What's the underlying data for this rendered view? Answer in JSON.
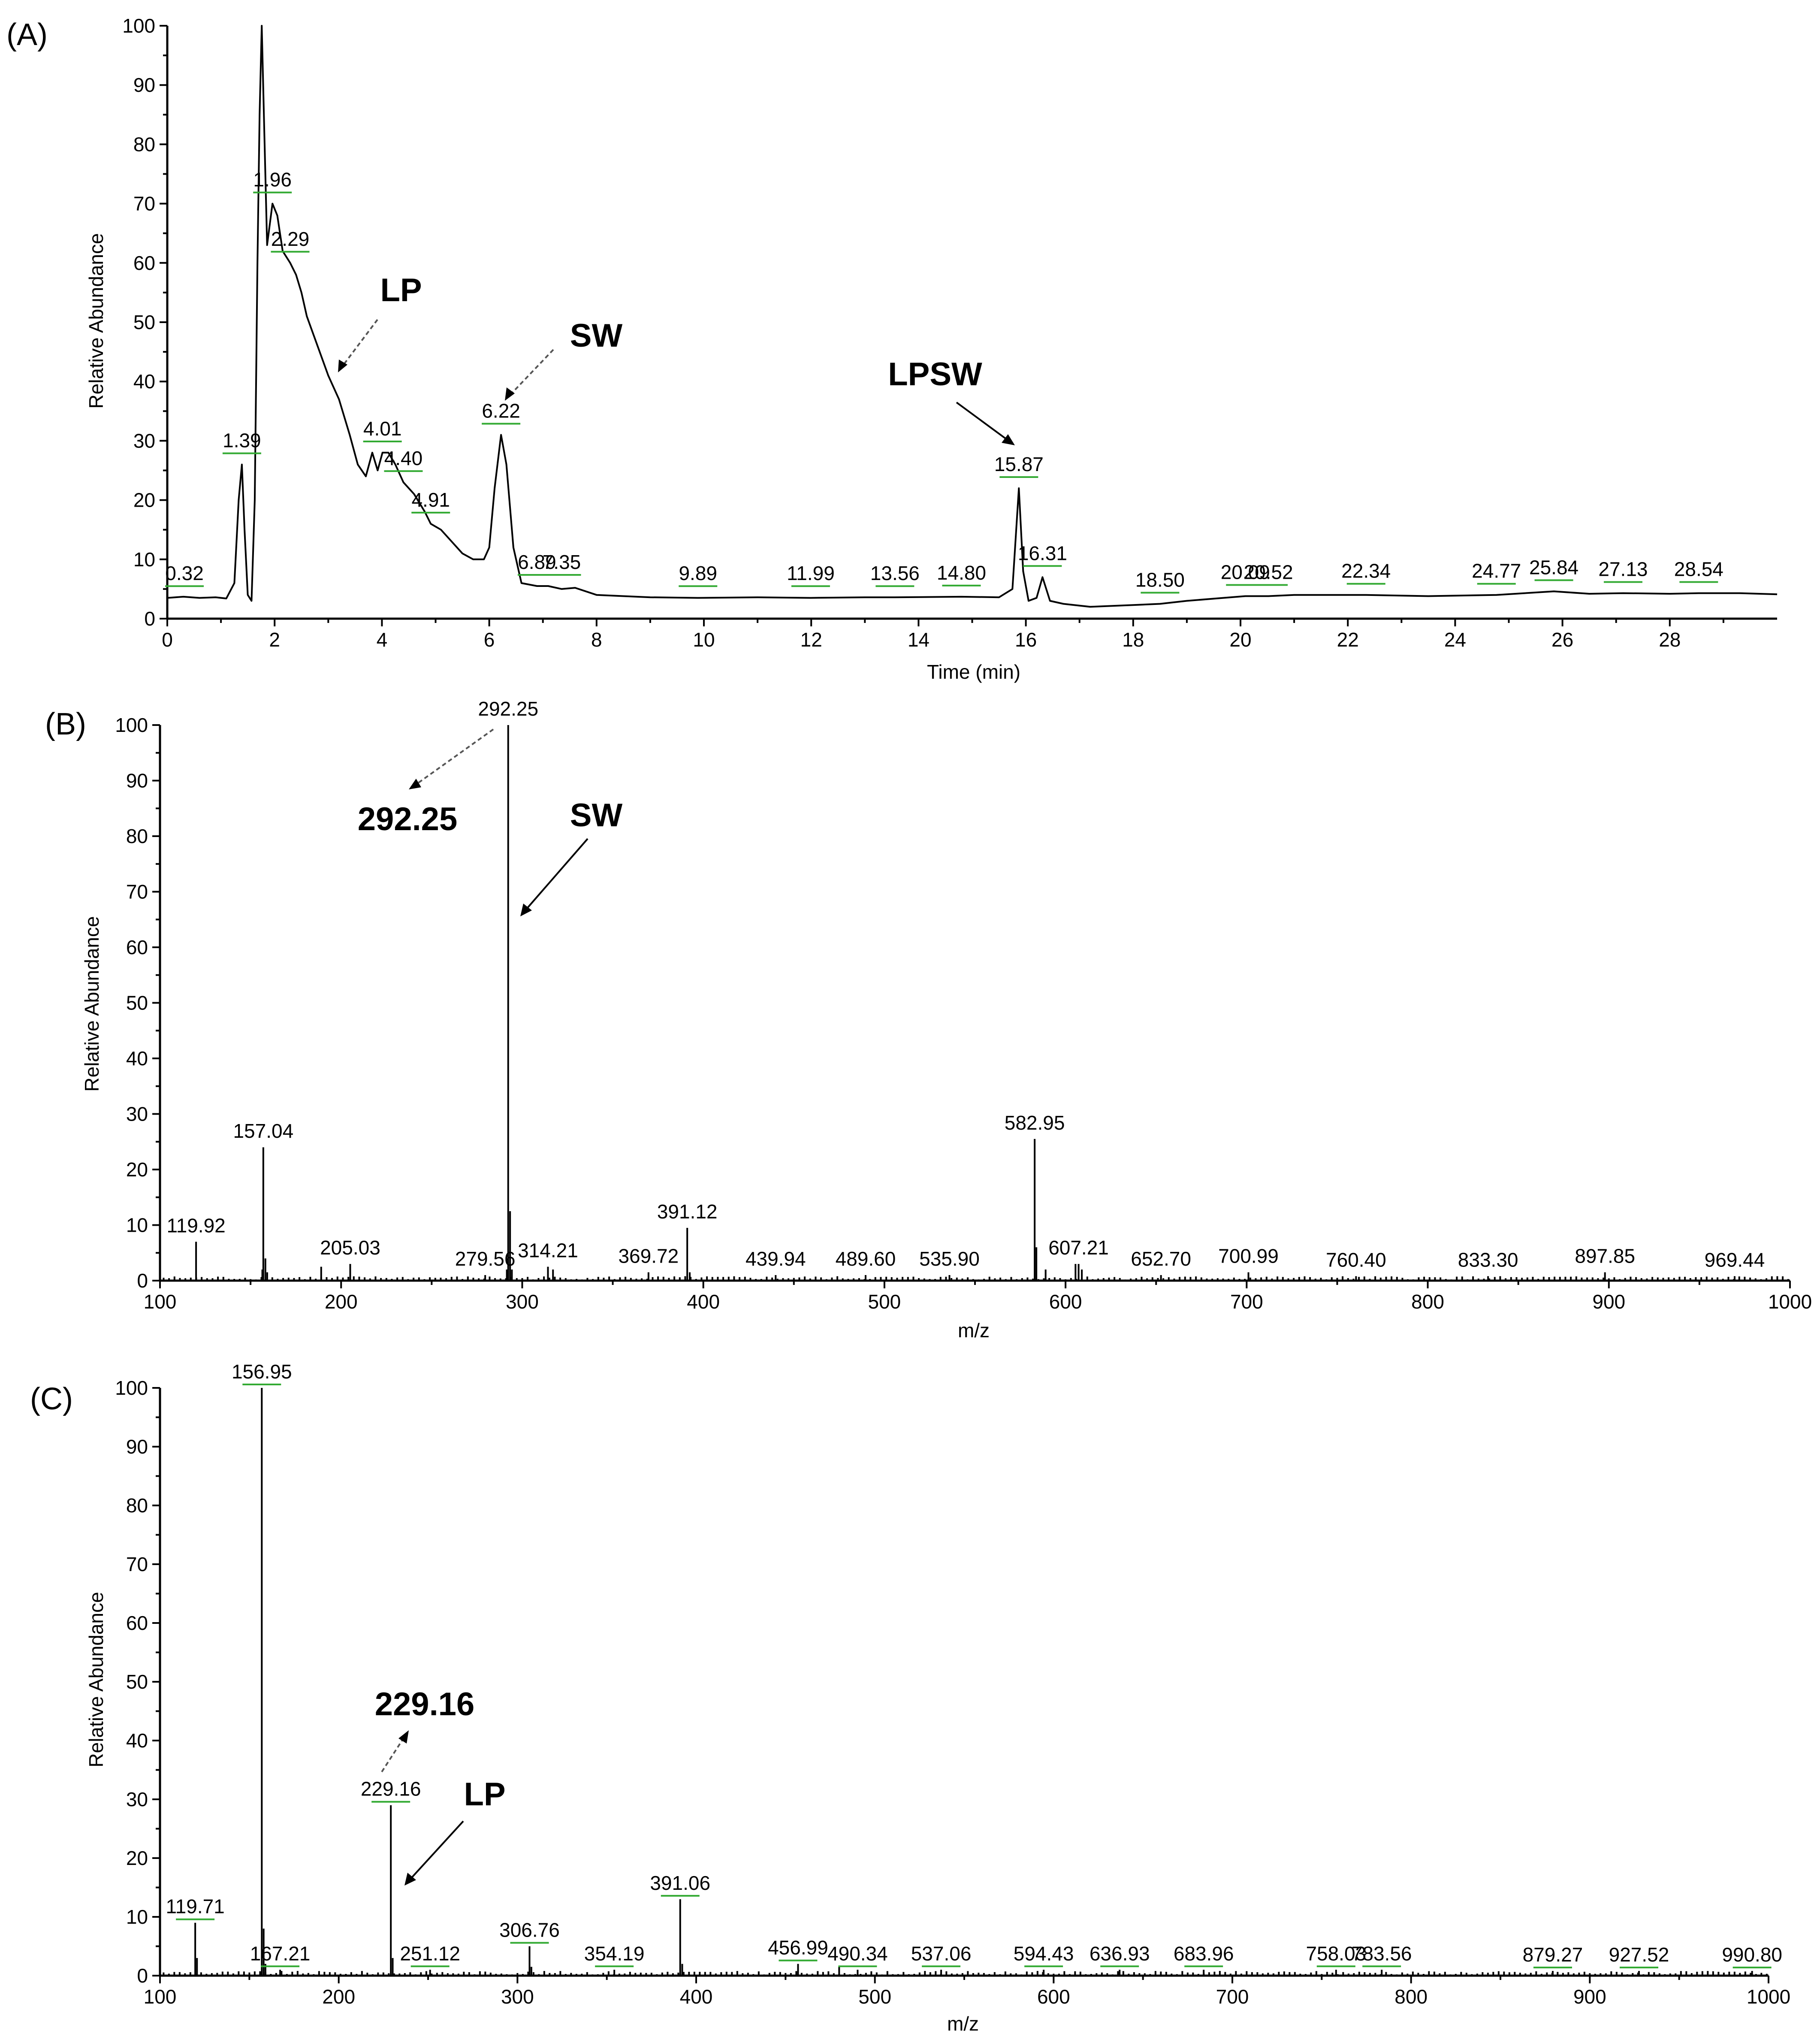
{
  "chart_data": [
    {
      "type": "line",
      "panel_label": "(A)",
      "xlabel": "Time (min)",
      "ylabel": "Relative Abundance",
      "xlim": [
        0,
        30
      ],
      "ylim": [
        0,
        100
      ],
      "xticks": [
        0,
        2,
        4,
        6,
        8,
        10,
        12,
        14,
        16,
        18,
        20,
        22,
        24,
        26,
        28
      ],
      "yticks": [
        0,
        10,
        20,
        30,
        40,
        50,
        60,
        70,
        80,
        90,
        100
      ],
      "trace": [
        [
          0,
          3.5
        ],
        [
          0.3,
          3.7
        ],
        [
          0.6,
          3.5
        ],
        [
          0.9,
          3.6
        ],
        [
          1.1,
          3.4
        ],
        [
          1.25,
          6
        ],
        [
          1.33,
          20
        ],
        [
          1.39,
          26
        ],
        [
          1.44,
          15
        ],
        [
          1.5,
          4
        ],
        [
          1.57,
          3
        ],
        [
          1.63,
          20
        ],
        [
          1.68,
          60
        ],
        [
          1.72,
          85
        ],
        [
          1.76,
          100
        ],
        [
          1.8,
          85
        ],
        [
          1.86,
          63
        ],
        [
          1.96,
          70
        ],
        [
          2.05,
          68
        ],
        [
          2.15,
          62
        ],
        [
          2.29,
          60
        ],
        [
          2.4,
          58
        ],
        [
          2.5,
          55
        ],
        [
          2.6,
          51
        ],
        [
          2.8,
          46
        ],
        [
          3.0,
          41
        ],
        [
          3.2,
          37
        ],
        [
          3.4,
          31
        ],
        [
          3.55,
          26
        ],
        [
          3.7,
          24
        ],
        [
          3.82,
          28
        ],
        [
          3.92,
          25
        ],
        [
          4.01,
          28
        ],
        [
          4.12,
          28
        ],
        [
          4.25,
          26
        ],
        [
          4.4,
          23
        ],
        [
          4.6,
          21
        ],
        [
          4.8,
          18
        ],
        [
          4.91,
          16
        ],
        [
          5.1,
          15
        ],
        [
          5.3,
          13
        ],
        [
          5.5,
          11
        ],
        [
          5.7,
          10
        ],
        [
          5.9,
          10
        ],
        [
          6.0,
          12
        ],
        [
          6.1,
          22
        ],
        [
          6.22,
          31
        ],
        [
          6.32,
          26
        ],
        [
          6.45,
          12
        ],
        [
          6.6,
          6
        ],
        [
          6.89,
          5.5
        ],
        [
          7.1,
          5.5
        ],
        [
          7.35,
          5
        ],
        [
          7.6,
          5.2
        ],
        [
          8.0,
          4
        ],
        [
          8.5,
          3.8
        ],
        [
          9.0,
          3.6
        ],
        [
          9.89,
          3.5
        ],
        [
          11.0,
          3.6
        ],
        [
          11.99,
          3.5
        ],
        [
          13.0,
          3.6
        ],
        [
          13.56,
          3.6
        ],
        [
          14.8,
          3.7
        ],
        [
          15.5,
          3.6
        ],
        [
          15.75,
          5
        ],
        [
          15.87,
          22
        ],
        [
          15.95,
          8
        ],
        [
          16.05,
          3
        ],
        [
          16.2,
          3.5
        ],
        [
          16.31,
          7
        ],
        [
          16.45,
          3
        ],
        [
          16.7,
          2.5
        ],
        [
          17.2,
          2
        ],
        [
          18.0,
          2.3
        ],
        [
          18.5,
          2.5
        ],
        [
          19.0,
          3
        ],
        [
          20.09,
          3.8
        ],
        [
          20.52,
          3.8
        ],
        [
          21.0,
          4
        ],
        [
          22.34,
          4
        ],
        [
          23.5,
          3.8
        ],
        [
          24.77,
          4
        ],
        [
          25.84,
          4.6
        ],
        [
          26.5,
          4.2
        ],
        [
          27.13,
          4.3
        ],
        [
          28.0,
          4.2
        ],
        [
          28.54,
          4.3
        ],
        [
          29.3,
          4.3
        ],
        [
          30,
          4.1
        ]
      ],
      "peak_labels": [
        {
          "text": "0.32",
          "x": 0.32,
          "y": 3.6
        },
        {
          "text": "1.39",
          "x": 1.39,
          "y": 26
        },
        {
          "text": "1.96",
          "x": 1.96,
          "y": 70
        },
        {
          "text": "2.29",
          "x": 2.29,
          "y": 60
        },
        {
          "text": "4.01",
          "x": 4.01,
          "y": 28
        },
        {
          "text": "4.40",
          "x": 4.4,
          "y": 23
        },
        {
          "text": "4.91",
          "x": 4.91,
          "y": 16
        },
        {
          "text": "6.22",
          "x": 6.22,
          "y": 31
        },
        {
          "text": "6.89",
          "x": 6.89,
          "y": 5.5
        },
        {
          "text": "7.35",
          "x": 7.35,
          "y": 5.5
        },
        {
          "text": "9.89",
          "x": 9.89,
          "y": 3.6
        },
        {
          "text": "11.99",
          "x": 11.99,
          "y": 3.6
        },
        {
          "text": "13.56",
          "x": 13.56,
          "y": 3.6
        },
        {
          "text": "14.80",
          "x": 14.8,
          "y": 3.7
        },
        {
          "text": "15.87",
          "x": 15.87,
          "y": 22
        },
        {
          "text": "16.31",
          "x": 16.31,
          "y": 7
        },
        {
          "text": "18.50",
          "x": 18.5,
          "y": 2.5
        },
        {
          "text": "20.09",
          "x": 20.09,
          "y": 3.8
        },
        {
          "text": "20.52",
          "x": 20.52,
          "y": 3.8
        },
        {
          "text": "22.34",
          "x": 22.34,
          "y": 4
        },
        {
          "text": "24.77",
          "x": 24.77,
          "y": 4
        },
        {
          "text": "25.84",
          "x": 25.84,
          "y": 4.6
        },
        {
          "text": "27.13",
          "x": 27.13,
          "y": 4.3
        },
        {
          "text": "28.54",
          "x": 28.54,
          "y": 4.3
        }
      ],
      "annotations": [
        {
          "text": "LP",
          "x": 3.2,
          "y": 40
        },
        {
          "text": "SW",
          "x": 6.3,
          "y": 37
        },
        {
          "text": "LPSW",
          "x": 15.8,
          "y": 30
        }
      ]
    },
    {
      "type": "bar",
      "panel_label": "(B)",
      "xlabel": "m/z",
      "ylabel": "Relative Abundance",
      "xlim": [
        100,
        1000
      ],
      "ylim": [
        0,
        100
      ],
      "xticks": [
        100,
        200,
        300,
        400,
        500,
        600,
        700,
        800,
        900,
        1000
      ],
      "yticks": [
        0,
        10,
        20,
        30,
        40,
        50,
        60,
        70,
        80,
        90,
        100
      ],
      "peaks": [
        [
          119.92,
          7
        ],
        [
          156.5,
          2
        ],
        [
          157.04,
          24
        ],
        [
          158.2,
          4
        ],
        [
          159.2,
          1.5
        ],
        [
          189,
          2.5
        ],
        [
          205.03,
          3
        ],
        [
          279.56,
          1
        ],
        [
          291.5,
          2
        ],
        [
          292.25,
          100
        ],
        [
          293.3,
          12.5
        ],
        [
          294.3,
          2
        ],
        [
          314.21,
          2.5
        ],
        [
          317,
          2
        ],
        [
          369.72,
          1.5
        ],
        [
          391.12,
          9.5
        ],
        [
          392.5,
          1.5
        ],
        [
          439.94,
          1
        ],
        [
          489.6,
          1
        ],
        [
          535.9,
          1
        ],
        [
          582.95,
          25.5
        ],
        [
          583.9,
          6
        ],
        [
          589,
          2
        ],
        [
          605.5,
          3
        ],
        [
          607.21,
          3
        ],
        [
          609,
          2
        ],
        [
          652.7,
          1
        ],
        [
          700.99,
          1.5
        ],
        [
          760.4,
          0.8
        ],
        [
          833.3,
          0.8
        ],
        [
          897.85,
          1.5
        ],
        [
          969.44,
          0.8
        ]
      ],
      "peak_labels": [
        {
          "text": "119.92",
          "x": 119.92,
          "y": 7
        },
        {
          "text": "157.04",
          "x": 157.04,
          "y": 24
        },
        {
          "text": "205.03",
          "x": 205.03,
          "y": 3
        },
        {
          "text": "279.56",
          "x": 279.56,
          "y": 1
        },
        {
          "text": "292.25",
          "x": 292.25,
          "y": 100
        },
        {
          "text": "314.21",
          "x": 314.21,
          "y": 2.5
        },
        {
          "text": "369.72",
          "x": 369.72,
          "y": 1.5
        },
        {
          "text": "391.12",
          "x": 391.12,
          "y": 9.5
        },
        {
          "text": "439.94",
          "x": 439.94,
          "y": 1
        },
        {
          "text": "489.60",
          "x": 489.6,
          "y": 1
        },
        {
          "text": "535.90",
          "x": 535.9,
          "y": 1
        },
        {
          "text": "582.95",
          "x": 582.95,
          "y": 25.5
        },
        {
          "text": "607.21",
          "x": 607.21,
          "y": 3
        },
        {
          "text": "652.70",
          "x": 652.7,
          "y": 1
        },
        {
          "text": "700.99",
          "x": 700.99,
          "y": 1.5
        },
        {
          "text": "760.40",
          "x": 760.4,
          "y": 0.8
        },
        {
          "text": "833.30",
          "x": 833.3,
          "y": 0.8
        },
        {
          "text": "897.85",
          "x": 897.85,
          "y": 1.5
        },
        {
          "text": "969.44",
          "x": 969.44,
          "y": 0.8
        }
      ],
      "annotations": [
        {
          "text": "292.25",
          "x": 237,
          "y": 83
        },
        {
          "text": "SW",
          "x": 340,
          "y": 81
        }
      ]
    },
    {
      "type": "bar",
      "panel_label": "(C)",
      "xlabel": "m/z",
      "ylabel": "Relative Abundance",
      "xlim": [
        100,
        1000
      ],
      "ylim": [
        0,
        100
      ],
      "xticks": [
        100,
        200,
        300,
        400,
        500,
        600,
        700,
        800,
        900,
        1000
      ],
      "yticks": [
        0,
        10,
        20,
        30,
        40,
        50,
        60,
        70,
        80,
        90,
        100
      ],
      "peaks": [
        [
          119.71,
          9
        ],
        [
          120.7,
          3
        ],
        [
          156.95,
          100
        ],
        [
          158,
          8
        ],
        [
          159,
          2
        ],
        [
          167.21,
          1
        ],
        [
          229.16,
          29
        ],
        [
          230.2,
          3
        ],
        [
          251.12,
          1
        ],
        [
          306.76,
          5
        ],
        [
          307.8,
          1.5
        ],
        [
          354.19,
          1
        ],
        [
          391.06,
          13
        ],
        [
          392.2,
          2
        ],
        [
          456.99,
          2
        ],
        [
          480,
          1.5
        ],
        [
          490.34,
          1
        ],
        [
          537.06,
          1
        ],
        [
          594.43,
          1
        ],
        [
          636.93,
          1
        ],
        [
          683.96,
          1
        ],
        [
          758.03,
          1
        ],
        [
          783.56,
          1
        ],
        [
          879.27,
          0.8
        ],
        [
          927.52,
          0.8
        ],
        [
          990.8,
          0.8
        ]
      ],
      "peak_labels": [
        {
          "text": "119.71",
          "x": 119.71,
          "y": 9
        },
        {
          "text": "156.95",
          "x": 156.95,
          "y": 100
        },
        {
          "text": "167.21",
          "x": 167.21,
          "y": 1
        },
        {
          "text": "229.16",
          "x": 229.16,
          "y": 29
        },
        {
          "text": "251.12",
          "x": 251.12,
          "y": 1
        },
        {
          "text": "306.76",
          "x": 306.76,
          "y": 5
        },
        {
          "text": "354.19",
          "x": 354.19,
          "y": 1
        },
        {
          "text": "391.06",
          "x": 391.06,
          "y": 13
        },
        {
          "text": "456.99",
          "x": 456.99,
          "y": 2
        },
        {
          "text": "490.34",
          "x": 490.34,
          "y": 1
        },
        {
          "text": "537.06",
          "x": 537.06,
          "y": 1
        },
        {
          "text": "594.43",
          "x": 594.43,
          "y": 1
        },
        {
          "text": "636.93",
          "x": 636.93,
          "y": 1
        },
        {
          "text": "683.96",
          "x": 683.96,
          "y": 1
        },
        {
          "text": "758.03",
          "x": 758.03,
          "y": 1
        },
        {
          "text": "783.56",
          "x": 783.56,
          "y": 1
        },
        {
          "text": "879.27",
          "x": 879.27,
          "y": 0.8
        },
        {
          "text": "927.52",
          "x": 927.52,
          "y": 0.8
        },
        {
          "text": "990.80",
          "x": 990.8,
          "y": 0.8
        }
      ],
      "annotations": [
        {
          "text": "229.16",
          "x": 250,
          "y": 44
        },
        {
          "text": "LP",
          "x": 280,
          "y": 29
        }
      ]
    }
  ]
}
